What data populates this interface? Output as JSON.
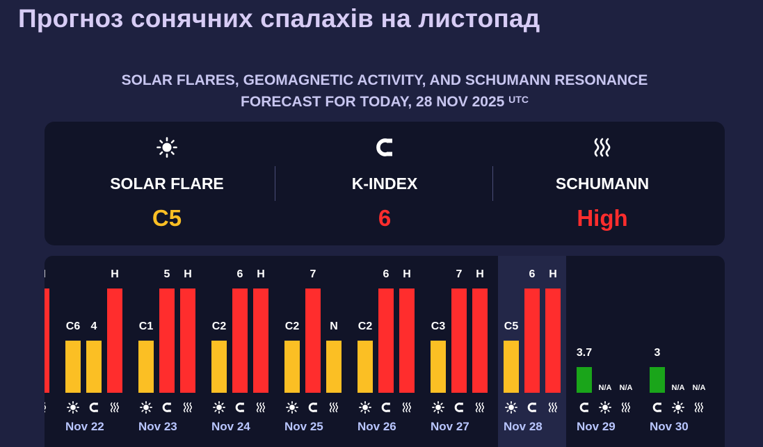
{
  "title": "Прогноз сонячних спалахів на листопад",
  "subtitle": {
    "line1": "SOLAR FLARES, GEOMAGNETIC ACTIVITY, AND SCHUMANN RESONANCE",
    "line2": "FORECAST FOR TODAY, 28 NOV 2025",
    "sup": "UTC"
  },
  "summary": [
    {
      "icon": "sun-icon",
      "label": "SOLAR FLARE",
      "value": "C5",
      "color": "#fbbf24"
    },
    {
      "icon": "magnet-icon",
      "label": "K-INDEX",
      "value": "6",
      "color": "#ff2d2d"
    },
    {
      "icon": "waves-icon",
      "label": "SCHUMANN",
      "value": "High",
      "color": "#ff2d2d"
    }
  ],
  "colors": {
    "yellow": "#fbbf24",
    "red": "#ff2d2d",
    "green": "#1aa51a"
  },
  "days": [
    {
      "date": "",
      "flare": null,
      "k": null,
      "sch": "H",
      "partial": true
    },
    {
      "date": "Nov 22",
      "flare": "C6",
      "k": "4",
      "sch": "H"
    },
    {
      "date": "Nov 23",
      "flare": "C1",
      "k": "5",
      "sch": "H"
    },
    {
      "date": "Nov 24",
      "flare": "C2",
      "k": "6",
      "sch": "H"
    },
    {
      "date": "Nov 25",
      "flare": "C2",
      "k": "7",
      "sch": "N"
    },
    {
      "date": "Nov 26",
      "flare": "C2",
      "k": "6",
      "sch": "H"
    },
    {
      "date": "Nov 27",
      "flare": "C3",
      "k": "7",
      "sch": "H"
    },
    {
      "date": "Nov 28",
      "flare": "C5",
      "k": "6",
      "sch": "H",
      "today": true
    },
    {
      "date": "Nov 29",
      "k_forecast": "3.7",
      "flare_na": "N/A",
      "sch_na": "N/A"
    },
    {
      "date": "Nov 30",
      "k_forecast": "3",
      "flare_na": "N/A",
      "sch_na": "N/A"
    }
  ]
}
